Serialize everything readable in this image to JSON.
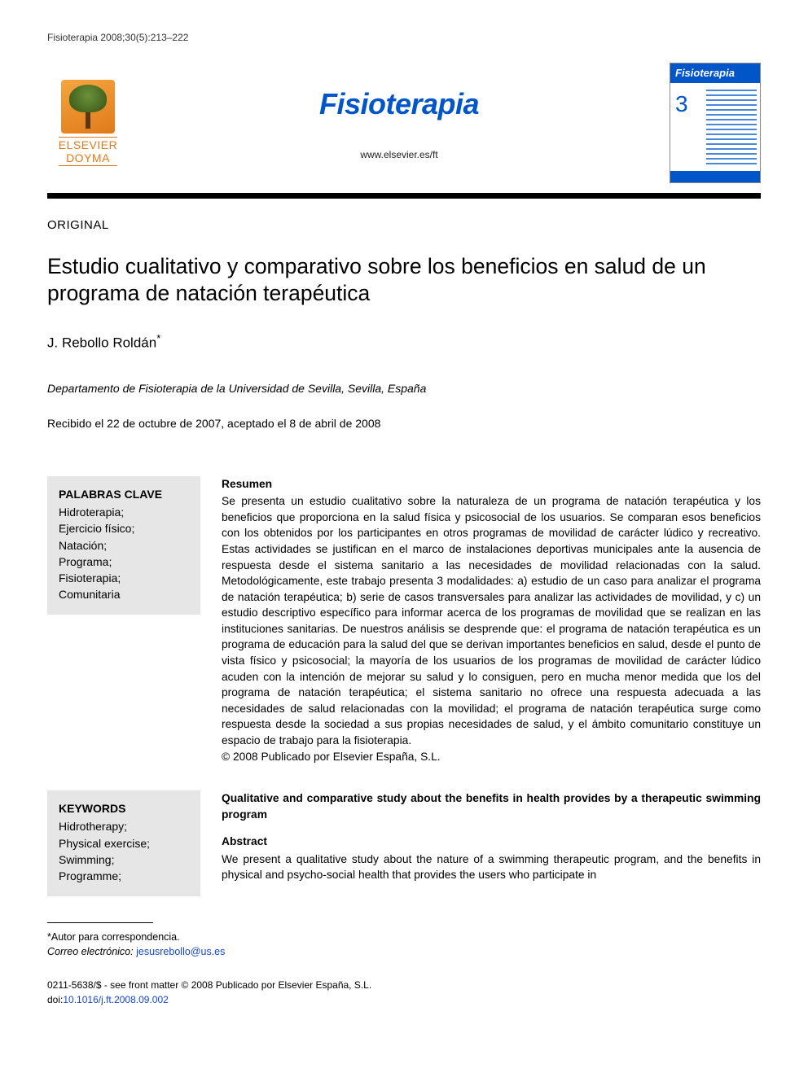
{
  "header_line": "Fisioterapia 2008;30(5):213–222",
  "publisher": {
    "name_line1": "ELSEVIER",
    "name_line2": "DOYMA"
  },
  "journal": {
    "title": "Fisioterapia",
    "url": "www.elsevier.es/ft"
  },
  "cover": {
    "band_title": "Fisioterapia",
    "issue_num": "3"
  },
  "article_type": "ORIGINAL",
  "article_title": "Estudio cualitativo y comparativo sobre los beneficios en salud de un programa de natación terapéutica",
  "authors": "J. Rebollo Roldán",
  "author_marker": "*",
  "affiliation": "Departamento de Fisioterapia de la Universidad de Sevilla, Sevilla, España",
  "dates": "Recibido el 22 de octubre de 2007, aceptado el 8 de abril de 2008",
  "es": {
    "kw_head": "PALABRAS CLAVE",
    "keywords": [
      "Hidroterapia;",
      "Ejercicio físico;",
      "Natación;",
      "Programa;",
      "Fisioterapia;",
      "Comunitaria"
    ],
    "abs_head": "Resumen",
    "abstract": "Se presenta un estudio cualitativo sobre la naturaleza de un programa de natación terapéutica y los beneficios que proporciona en la salud física y psicosocial de los usuarios. Se comparan esos beneficios con los obtenidos por los participantes en otros programas de movilidad de carácter lúdico y recreativo. Estas actividades se justifican en el marco de instalaciones deportivas municipales ante la ausencia de respuesta desde el sistema sanitario a las necesidades de movilidad relacionadas con la salud. Metodológicamente, este trabajo presenta 3 modalidades: a) estudio de un caso para analizar el programa de natación terapéutica; b) serie de casos transversales para analizar las actividades de movilidad, y c) un estudio descriptivo específico para informar acerca de los programas de movilidad que se realizan en las instituciones sanitarias. De nuestros análisis se desprende que: el programa de natación terapéutica es un programa de educación para la salud del que se derivan importantes beneficios en salud, desde el punto de vista físico y psicosocial; la mayoría de los usuarios de los programas de movilidad de carácter lúdico acuden con la intención de mejorar su salud y lo consiguen, pero en mucha menor medida que los del programa de natación terapéutica; el sistema sanitario no ofrece una respuesta adecuada a las necesidades de salud relacionadas con la movilidad; el programa de natación terapéutica surge como respuesta desde la sociedad a sus propias necesidades de salud, y el ámbito comunitario constituye un espacio de trabajo para la fisioterapia.",
    "copyright": "© 2008 Publicado por Elsevier España, S.L."
  },
  "en": {
    "kw_head": "KEYWORDS",
    "keywords": [
      "Hidrotherapy;",
      "Physical exercise;",
      "Swimming;",
      "Programme;"
    ],
    "title": "Qualitative and comparative study about the benefits in health provides by a therapeutic swimming program",
    "abs_head": "Abstract",
    "abstract": "We present a qualitative study about the nature of a swimming therapeutic program, and the benefits in physical and psycho-social health that provides the users who participate in"
  },
  "footnote": {
    "corr_label": "*Autor para correspondencia.",
    "email_label": "Correo electrónico:",
    "email": "jesusrebollo@us.es"
  },
  "issn": {
    "line1": "0211-5638/$ - see front matter © 2008 Publicado por Elsevier España, S.L.",
    "doi_label": "doi:",
    "doi": "10.1016/j.ft.2008.09.002"
  }
}
